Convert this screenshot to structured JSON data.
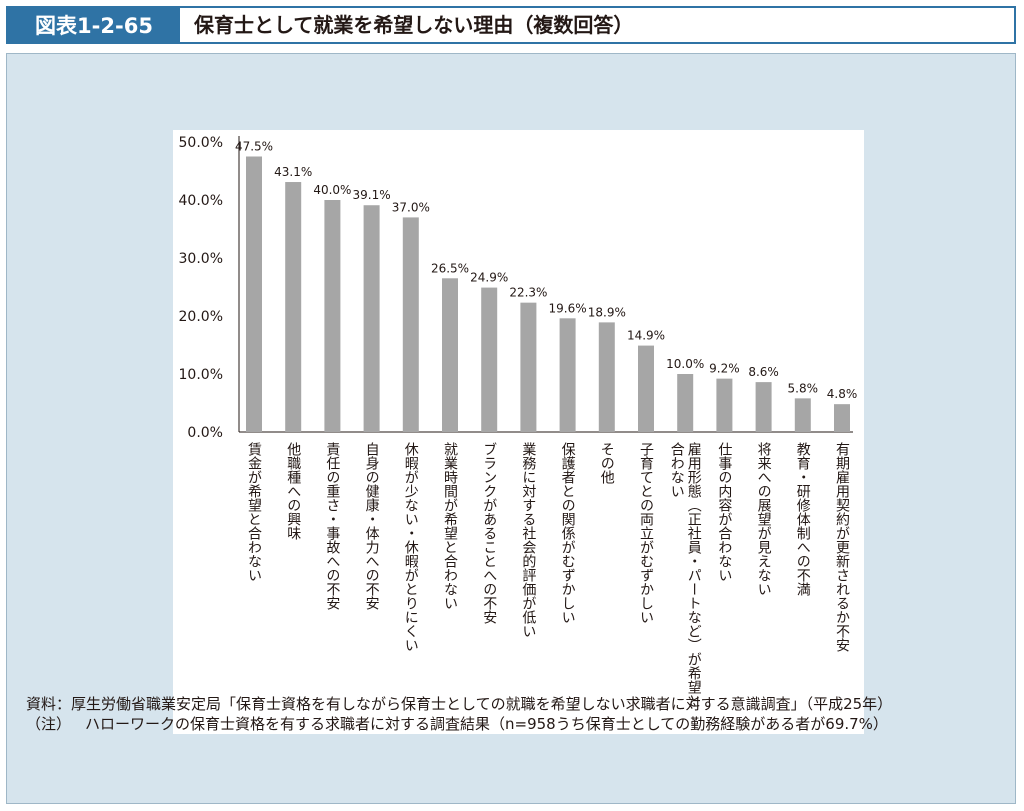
{
  "header": {
    "figure_label": "図表1-2-65",
    "title": "保育士として就業を希望しない理由（複数回答）"
  },
  "chart_data": {
    "type": "bar",
    "title": "",
    "xlabel": "",
    "ylabel": "",
    "ylim": [
      0,
      50
    ],
    "yticks": [
      "0.0%",
      "10.0%",
      "20.0%",
      "30.0%",
      "40.0%",
      "50.0%"
    ],
    "grid": false,
    "bar_color": "#a6a6a6",
    "categories": [
      "賃金が希望と合わない",
      "他職種への興味",
      "責任の重さ・事故への不安",
      "自身の健康・体力への不安",
      "休暇が少ない・休暇がとりにくい",
      "就業時間が希望と合わない",
      "ブランクがあることへの不安",
      "業務に対する社会的評価が低い",
      "保護者との関係がむずかしい",
      "その他",
      "子育てとの両立がむずかしい",
      "雇用形態（正社員・パートなど）が希望と合わない",
      "仕事の内容が合わない",
      "将来への展望が見えない",
      "教育・研修体制への不満",
      "有期雇用契約が更新されるか不安"
    ],
    "category_lines": [
      [
        "賃金が希望と合わない"
      ],
      [
        "他職種への興味"
      ],
      [
        "責任の重さ・事故への不安"
      ],
      [
        "自身の健康・体力への不安"
      ],
      [
        "休暇が少ない・休暇がとりにくい"
      ],
      [
        "就業時間が希望と合わない"
      ],
      [
        "ブランクがあることへの不安"
      ],
      [
        "業務に対する社会的評価が低い"
      ],
      [
        "保護者との関係がむずかしい"
      ],
      [
        "その他"
      ],
      [
        "子育てとの両立がむずかしい"
      ],
      [
        "雇用形態（正社員・パートなど）が希望と",
        "合わない"
      ],
      [
        "仕事の内容が合わない"
      ],
      [
        "将来への展望が見えない"
      ],
      [
        "教育・研修体制への不満"
      ],
      [
        "有期雇用契約が更新されるか不安"
      ]
    ],
    "values": [
      47.5,
      43.1,
      40.0,
      39.1,
      37.0,
      26.5,
      24.9,
      22.3,
      19.6,
      18.9,
      14.9,
      10.0,
      9.2,
      8.6,
      5.8,
      4.8
    ],
    "value_labels": [
      "47.5%",
      "43.1%",
      "40.0%",
      "39.1%",
      "37.0%",
      "26.5%",
      "24.9%",
      "22.3%",
      "19.6%",
      "18.9%",
      "14.9%",
      "10.0%",
      "9.2%",
      "8.6%",
      "5.8%",
      "4.8%"
    ]
  },
  "notes": {
    "source_prefix": "資料：",
    "source_text": "厚生労働省職業安定局「保育士資格を有しながら保育士としての就職を希望しない求職者に対する意識調査」（平成25年）",
    "note_prefix": "（注）",
    "note_text": "ハローワークの保育士資格を有する求職者に対する調査結果（n=958うち保育士としての勤務経験がある者が69.7%）"
  }
}
